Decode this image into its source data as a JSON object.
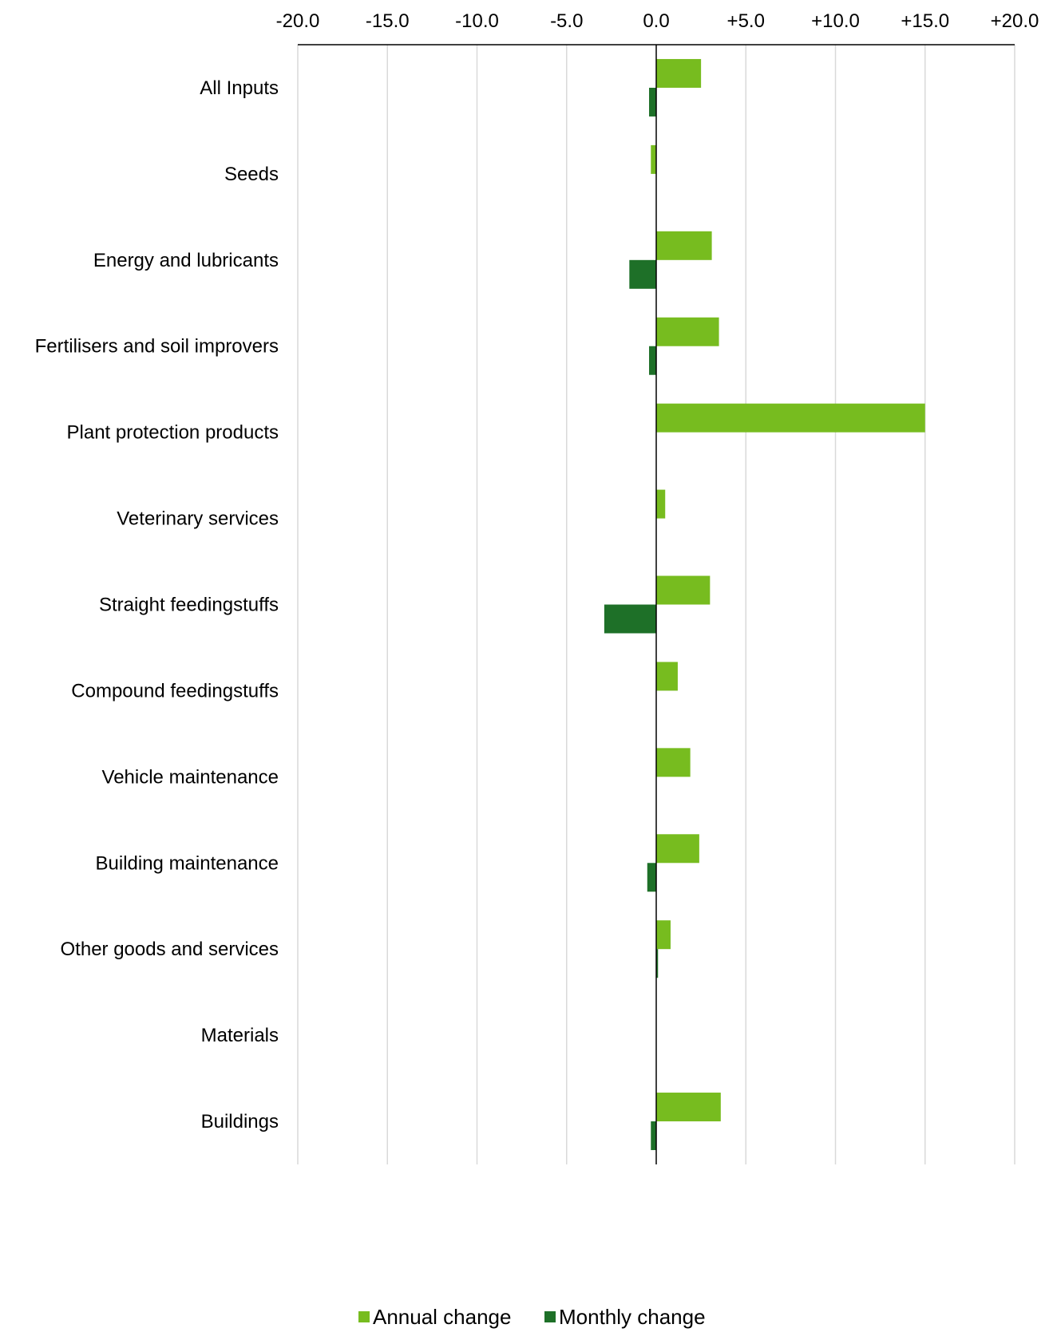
{
  "chart_data": {
    "type": "bar",
    "orientation": "horizontal",
    "title": "",
    "xlabel": "",
    "ylabel": "",
    "xlim": [
      -20,
      20
    ],
    "x_ticks": [
      -20,
      -15,
      -10,
      -5,
      0,
      5,
      10,
      15,
      20
    ],
    "x_tick_labels": [
      "-20.0",
      "-15.0",
      "-10.0",
      "-5.0",
      "0.0",
      "+5.0",
      "+10.0",
      "+15.0",
      "+20.0"
    ],
    "x_axis_position": "top",
    "grid": "vertical",
    "legend_position": "bottom-center",
    "categories": [
      "All Inputs",
      "Seeds",
      "Energy and lubricants",
      "Fertilisers and soil improvers",
      "Plant protection products",
      "Veterinary services",
      "Straight feedingstuffs",
      "Compound feedingstuffs",
      "Vehicle maintenance",
      "Building maintenance",
      "Other goods and services",
      "Materials",
      "Buildings"
    ],
    "series": [
      {
        "name": "Annual change",
        "color": "#77bc1f",
        "values": [
          2.5,
          -0.3,
          3.1,
          3.5,
          15.0,
          0.5,
          3.0,
          1.2,
          1.9,
          2.4,
          0.8,
          0.0,
          3.6
        ]
      },
      {
        "name": "Monthly change",
        "color": "#1e7028",
        "values": [
          -0.4,
          0.0,
          -1.5,
          -0.4,
          0.0,
          0.0,
          -2.9,
          0.0,
          0.0,
          -0.5,
          0.1,
          0.0,
          -0.3
        ]
      }
    ]
  }
}
